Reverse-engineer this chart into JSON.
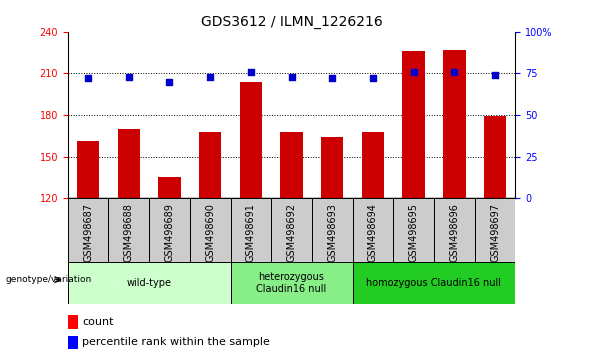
{
  "title": "GDS3612 / ILMN_1226216",
  "samples": [
    "GSM498687",
    "GSM498688",
    "GSM498689",
    "GSM498690",
    "GSM498691",
    "GSM498692",
    "GSM498693",
    "GSM498694",
    "GSM498695",
    "GSM498696",
    "GSM498697"
  ],
  "bar_values": [
    161,
    170,
    135,
    168,
    204,
    168,
    164,
    168,
    226,
    227,
    179
  ],
  "percentile_pct": [
    72,
    73,
    70,
    73,
    76,
    73,
    72,
    72,
    76,
    76,
    74
  ],
  "ylim_left": [
    120,
    240
  ],
  "ylim_right": [
    0,
    100
  ],
  "yticks_left": [
    120,
    150,
    180,
    210,
    240
  ],
  "yticks_right": [
    0,
    25,
    50,
    75,
    100
  ],
  "ytick_right_labels": [
    "0",
    "25",
    "50",
    "75",
    "100%"
  ],
  "bar_color": "#cc0000",
  "percentile_color": "#0000cc",
  "group_data": [
    {
      "label": "wild-type",
      "start": 0,
      "end": 3,
      "color": "#ccffcc"
    },
    {
      "label": "heterozygous\nClaudin16 null",
      "start": 4,
      "end": 6,
      "color": "#88ee88"
    },
    {
      "label": "homozygous Claudin16 null",
      "start": 7,
      "end": 10,
      "color": "#22cc22"
    }
  ],
  "sample_box_color": "#cccccc",
  "genotype_label": "genotype/variation",
  "legend_count": "count",
  "legend_pct": "percentile rank within the sample",
  "title_fontsize": 10,
  "tick_fontsize": 7,
  "group_fontsize": 7,
  "legend_fontsize": 8
}
